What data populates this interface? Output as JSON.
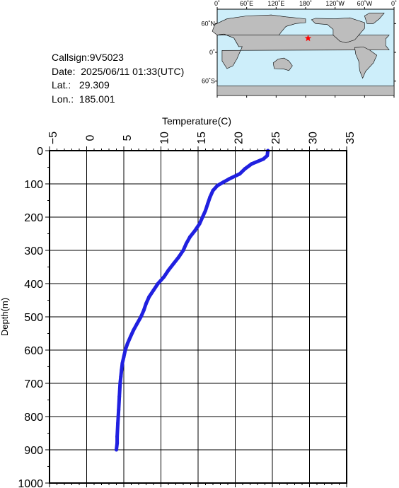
{
  "station": {
    "callsign_label": "Callsign:",
    "callsign": "9V5023",
    "date_label": "Date:",
    "date": "2025/06/11 01:33(UTC)",
    "lat_label": "Lat.:",
    "lat": "29.309",
    "lon_label": "Lon.:",
    "lon": "185.001"
  },
  "map": {
    "top_labels": [
      "0˚",
      "60˚E",
      "120˚E",
      "180˚",
      "120˚W",
      "60˚W",
      "0˚"
    ],
    "left_labels": [
      "60˚N",
      "0˚",
      "60˚S"
    ],
    "ocean_color": "#cdeefa",
    "land_color": "#bdbdbd",
    "marker_color": "#ff0000",
    "marker_icon": "star-icon"
  },
  "chart_data": {
    "type": "line",
    "xlabel": "Temperature(C)",
    "ylabel": "Depth(m)",
    "xlim": [
      -5,
      35
    ],
    "ylim": [
      1000,
      0
    ],
    "xticks": [
      "−5",
      "0",
      "5",
      "10",
      "15",
      "20",
      "25",
      "30",
      "35"
    ],
    "yticks": [
      "0",
      "100",
      "200",
      "300",
      "400",
      "500",
      "600",
      "700",
      "800",
      "900",
      "1000"
    ],
    "grid": true,
    "series": [
      {
        "color": "#2020e0",
        "x": [
          24.4,
          24.3,
          23.8,
          22.2,
          21.3,
          20.6,
          19.2,
          18.4,
          17.6,
          17.0,
          16.6,
          16.3,
          16.0,
          15.6,
          15.2,
          14.6,
          13.9,
          13.4,
          13.0,
          12.4,
          11.7,
          11.0,
          10.4,
          9.6,
          9.0,
          8.4,
          8.0,
          7.7,
          7.3,
          6.8,
          6.3,
          5.9,
          5.5,
          5.2,
          5.0,
          4.8,
          4.7,
          4.6,
          4.5,
          4.4,
          4.3,
          4.2,
          4.1,
          4.1,
          4.0
        ],
        "y": [
          0,
          15,
          25,
          40,
          55,
          70,
          85,
          95,
          105,
          120,
          140,
          160,
          180,
          200,
          220,
          240,
          260,
          280,
          300,
          320,
          340,
          360,
          380,
          400,
          420,
          440,
          460,
          480,
          500,
          520,
          540,
          560,
          580,
          600,
          620,
          640,
          660,
          680,
          700,
          740,
          780,
          820,
          860,
          880,
          900
        ]
      }
    ]
  }
}
